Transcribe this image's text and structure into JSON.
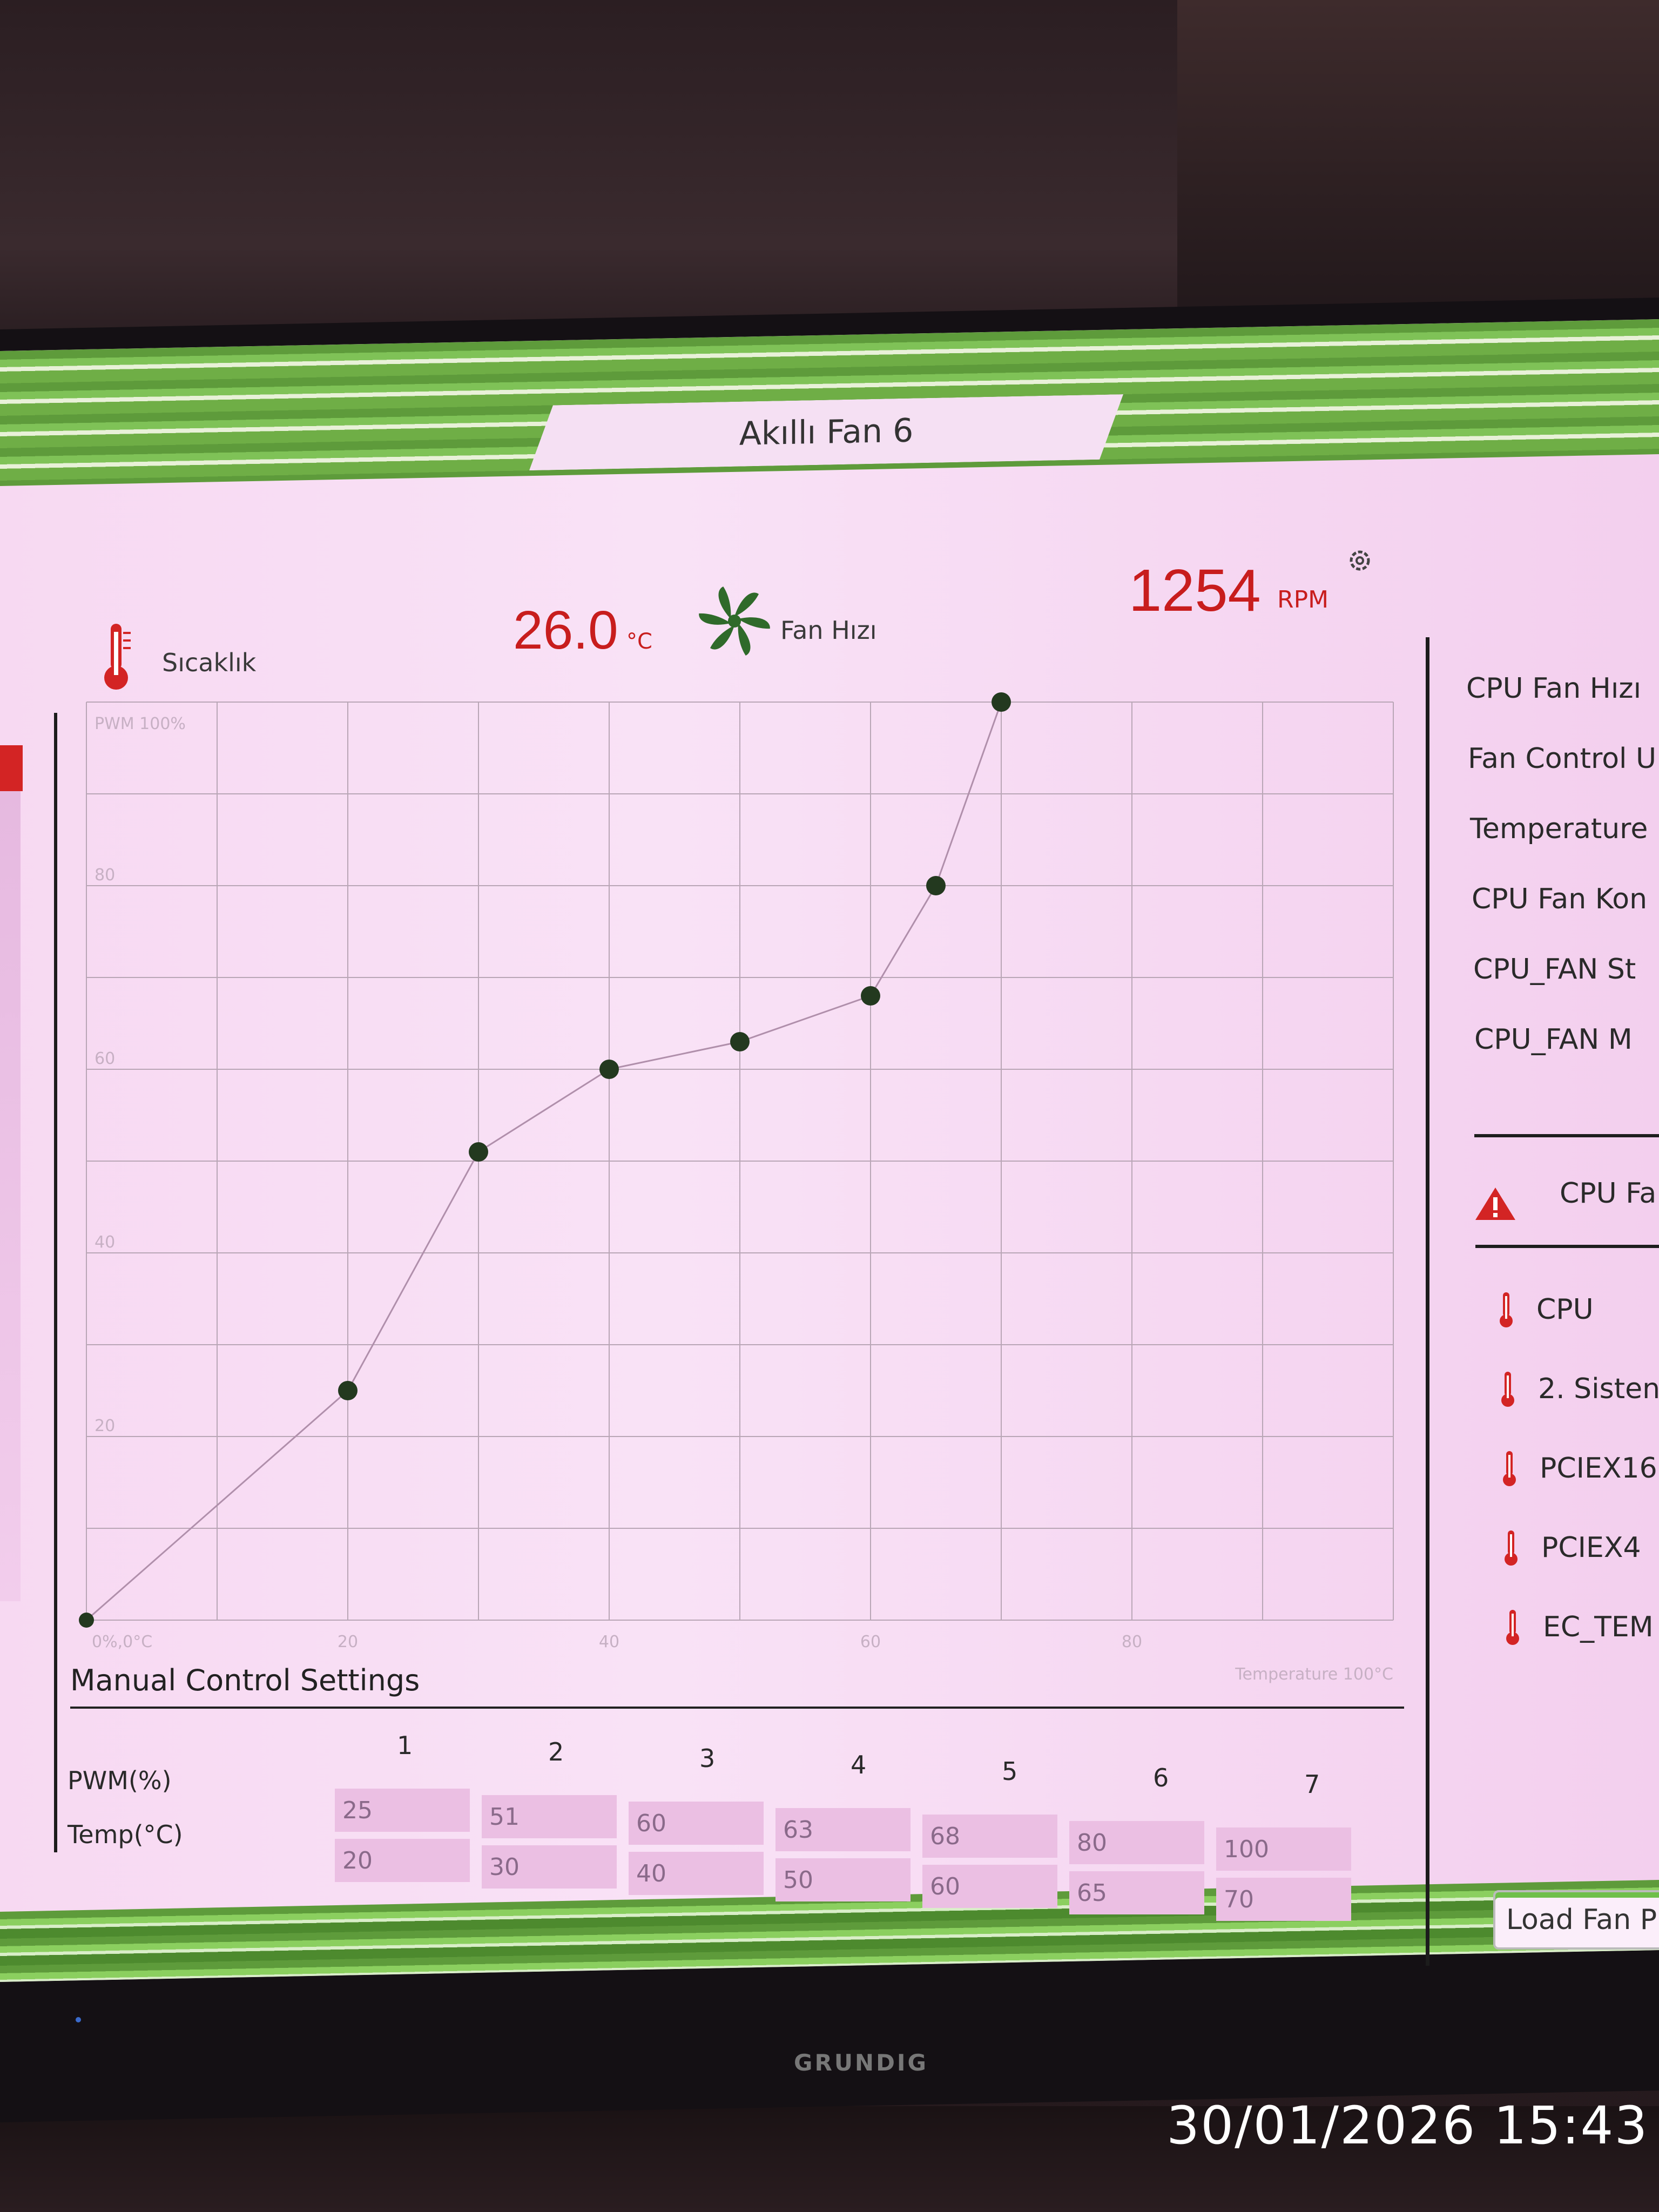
{
  "window": {
    "title": "Akıllı Fan 6"
  },
  "header": {
    "temp_label": "Sıcaklık",
    "temp_value": "26.0",
    "temp_unit": "°C",
    "fan_label": "Fan Hızı",
    "rpm_value": "1254",
    "rpm_unit": "RPM"
  },
  "chart_data": {
    "type": "line",
    "x": [
      0,
      20,
      30,
      40,
      50,
      60,
      65,
      70
    ],
    "y": [
      0,
      25,
      51,
      60,
      63,
      68,
      80,
      100
    ],
    "xlim": [
      0,
      100
    ],
    "ylim": [
      0,
      100
    ],
    "grid": true,
    "x_ticks": [
      "20",
      "40",
      "60",
      "80"
    ],
    "y_ticks": [
      "20",
      "40",
      "60",
      "80"
    ],
    "corner_label_top": "PWM 100%",
    "corner_label_origin": "0%,0°C",
    "corner_label_right": "Temperature 100°C"
  },
  "manual": {
    "title": "Manual Control Settings",
    "pwm_label": "PWM(%)",
    "temp_label": "Temp(°C)",
    "columns": [
      "1",
      "2",
      "3",
      "4",
      "5",
      "6",
      "7"
    ],
    "pwm": [
      "25",
      "51",
      "60",
      "63",
      "68",
      "80",
      "100"
    ],
    "temp": [
      "20",
      "30",
      "40",
      "50",
      "60",
      "65",
      "70"
    ]
  },
  "right_panel": {
    "items": [
      "CPU Fan Hızı",
      "Fan Control U",
      "Temperature",
      "CPU Fan Kon",
      "CPU_FAN St",
      "CPU_FAN M"
    ],
    "warning_text": "CPU Fa",
    "sensors": [
      "CPU",
      "2. Sisten",
      "PCIEX16",
      "PCIEX4",
      "EC_TEM"
    ],
    "load_button": "Load Fan P"
  },
  "bezel": {
    "brand": "GRUNDIG"
  },
  "photo": {
    "timestamp": "30/01/2026 15:43"
  },
  "colors": {
    "accent_red": "#c81d1d",
    "grid_line": "#b9a6b6",
    "point": "#23391f",
    "frame_green": "#6fae46"
  }
}
